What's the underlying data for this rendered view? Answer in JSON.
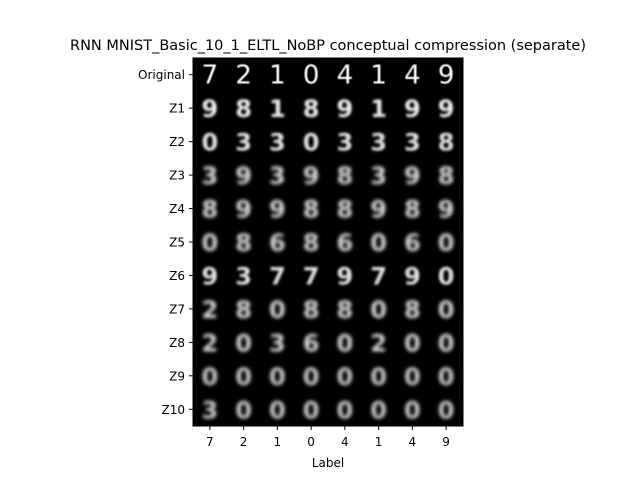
{
  "chart_data": {
    "type": "image-grid",
    "title": "RNN MNIST_Basic_10_1_ELTL_NoBP conceptual compression (separate)",
    "xlabel": "Label",
    "ylabel": "",
    "x_tick_labels": [
      "7",
      "2",
      "1",
      "0",
      "4",
      "1",
      "4",
      "9"
    ],
    "y_tick_labels": [
      "Original",
      "Z1",
      "Z2",
      "Z3",
      "Z4",
      "Z5",
      "Z6",
      "Z7",
      "Z8",
      "Z9",
      "Z10"
    ],
    "grid": false,
    "background_color": "#000000",
    "cells": [
      {
        "row": "Original",
        "digits": [
          "7",
          "2",
          "1",
          "0",
          "4",
          "1",
          "4",
          "9"
        ],
        "sharpness": 1.0
      },
      {
        "row": "Z1",
        "digits": [
          "9",
          "8",
          "1",
          "8",
          "9",
          "1",
          "9",
          "9"
        ],
        "sharpness": 0.75
      },
      {
        "row": "Z2",
        "digits": [
          "0",
          "3",
          "3",
          "0",
          "3",
          "3",
          "3",
          "8"
        ],
        "sharpness": 0.6
      },
      {
        "row": "Z3",
        "digits": [
          "3",
          "9",
          "3",
          "9",
          "8",
          "3",
          "9",
          "8"
        ],
        "sharpness": 0.45
      },
      {
        "row": "Z4",
        "digits": [
          "8",
          "9",
          "9",
          "8",
          "8",
          "9",
          "8",
          "9"
        ],
        "sharpness": 0.45
      },
      {
        "row": "Z5",
        "digits": [
          "0",
          "8",
          "6",
          "8",
          "6",
          "0",
          "6",
          "0"
        ],
        "sharpness": 0.4
      },
      {
        "row": "Z6",
        "digits": [
          "9",
          "3",
          "7",
          "7",
          "9",
          "7",
          "9",
          "0"
        ],
        "sharpness": 0.6
      },
      {
        "row": "Z7",
        "digits": [
          "2",
          "8",
          "0",
          "8",
          "8",
          "0",
          "8",
          "0"
        ],
        "sharpness": 0.45
      },
      {
        "row": "Z8",
        "digits": [
          "2",
          "0",
          "3",
          "6",
          "0",
          "2",
          "0",
          "0"
        ],
        "sharpness": 0.4
      },
      {
        "row": "Z9",
        "digits": [
          "0",
          "0",
          "0",
          "0",
          "0",
          "0",
          "0",
          "0"
        ],
        "sharpness": 0.3
      },
      {
        "row": "Z10",
        "digits": [
          "3",
          "0",
          "0",
          "0",
          "0",
          "0",
          "0",
          "0"
        ],
        "sharpness": 0.3
      }
    ]
  }
}
